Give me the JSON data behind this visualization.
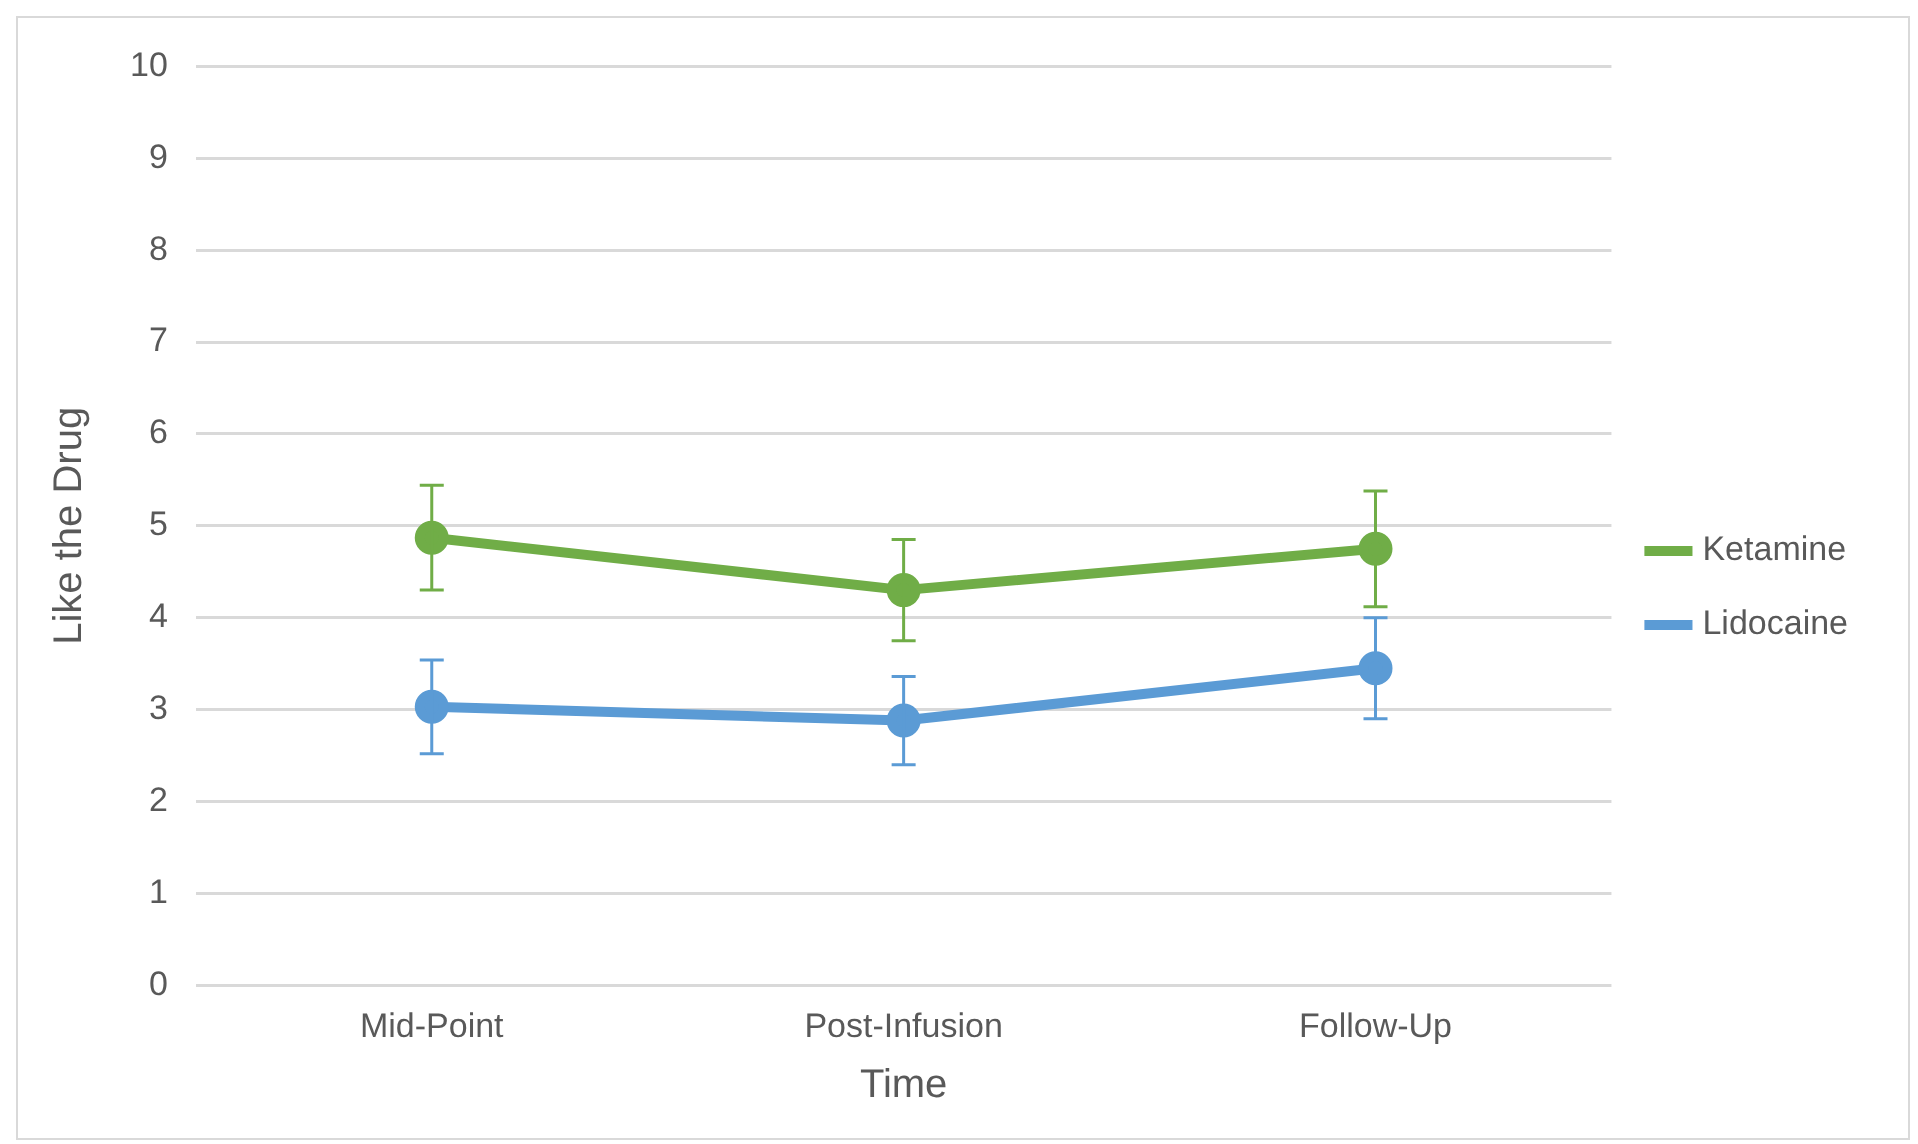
{
  "chart_data": {
    "type": "line",
    "xlabel": "Time",
    "ylabel": "Like the Drug",
    "categories": [
      "Mid-Point",
      "Post-Infusion",
      "Follow-Up"
    ],
    "series": [
      {
        "name": "Ketamine",
        "color": "#70ad47",
        "values": [
          4.87,
          4.3,
          4.75
        ],
        "errors": [
          0.57,
          0.55,
          0.63
        ]
      },
      {
        "name": "Lidocaine",
        "color": "#5b9bd5",
        "values": [
          3.03,
          2.88,
          3.45
        ],
        "errors": [
          0.51,
          0.48,
          0.55
        ]
      }
    ],
    "ylim": [
      0,
      10
    ],
    "yticks": [
      0,
      1,
      2,
      3,
      4,
      5,
      6,
      7,
      8,
      9,
      10
    ],
    "grid": "y",
    "legend": "right",
    "marker": "circle",
    "line_style": "solid"
  }
}
